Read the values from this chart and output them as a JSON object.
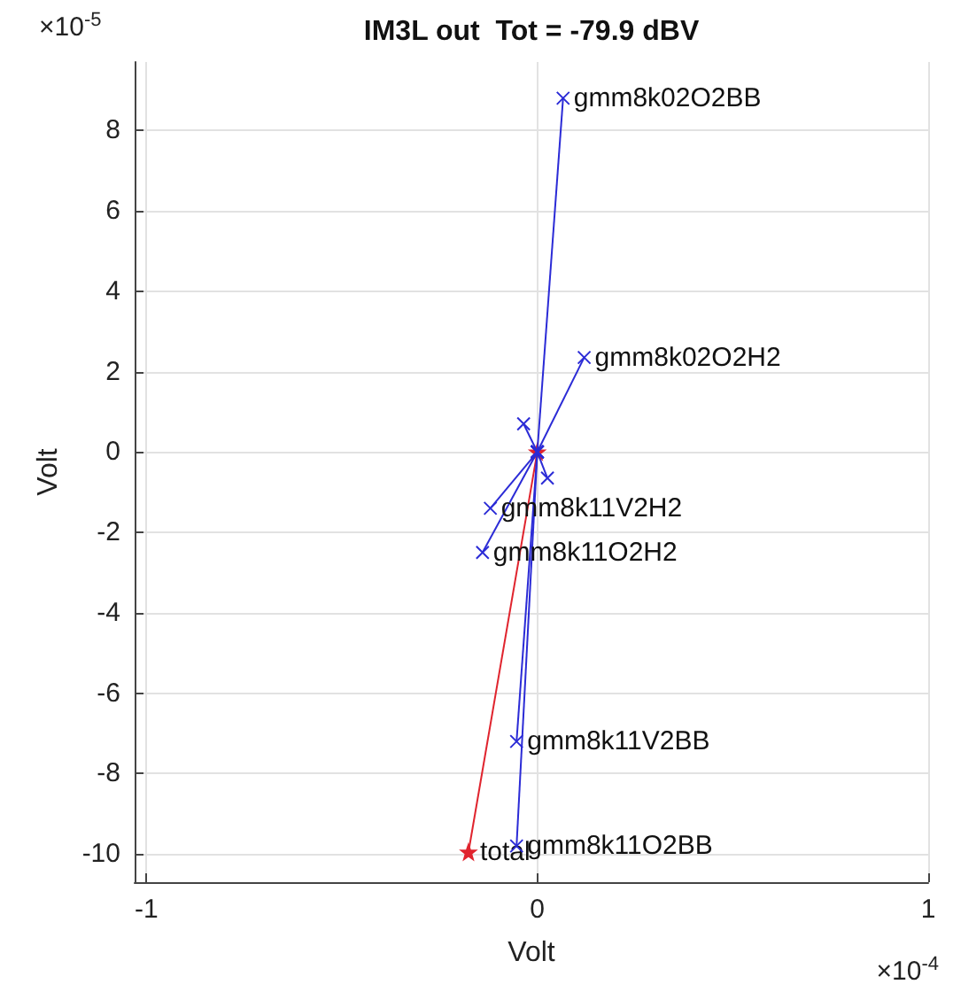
{
  "chart_data": {
    "type": "line",
    "title": "IM3L out  Tot = -79.9 dBV",
    "xlabel": "Volt",
    "ylabel": "Volt",
    "annotations": [
      "×10$^{-4}$",
      "×10$^{-5}$"
    ],
    "xlim": [
      -1.03,
      1.0
    ],
    "xticks": [
      -1,
      0,
      1
    ],
    "ylim": [
      -10.7,
      9.7
    ],
    "yticks": [
      -10,
      -8,
      -6,
      -4,
      -2,
      0,
      2,
      4,
      6,
      8
    ],
    "grid": true,
    "legend": false,
    "marker": "cross",
    "line_style": "solid",
    "series": [
      {
        "name": "gmm8k02O2BB",
        "color": "#2b2bd6",
        "x": [
          0,
          0.066
        ],
        "values": [
          0,
          8.8
        ]
      },
      {
        "name": "gmm8k02O2H2",
        "color": "#2b2bd6",
        "x": [
          0,
          0.12
        ],
        "values": [
          0,
          2.35
        ]
      },
      {
        "color": "#2b2bd6",
        "x": [
          0,
          -0.035
        ],
        "values": [
          0,
          0.7
        ]
      },
      {
        "color": "#2b2bd6",
        "x": [
          0,
          0.026
        ],
        "values": [
          0,
          -0.65
        ]
      },
      {
        "name": "gmm8k11V2H2",
        "color": "#2b2bd6",
        "x": [
          0,
          -0.12
        ],
        "values": [
          0,
          -1.4
        ]
      },
      {
        "name": "gmm8k11O2H2",
        "color": "#2b2bd6",
        "x": [
          0,
          -0.14
        ],
        "values": [
          0,
          -2.5
        ]
      },
      {
        "name": "gmm8k11V2BB",
        "color": "#2b2bd6",
        "x": [
          0,
          -0.053
        ],
        "values": [
          0,
          -7.2
        ]
      },
      {
        "name": "gmm8k11O2BB",
        "color": "#2b2bd6",
        "x": [
          0,
          -0.053
        ],
        "values": [
          0,
          -9.8
        ]
      },
      {
        "name": "total",
        "color": "#e0242e",
        "marker": "star",
        "x": [
          0,
          -0.176
        ],
        "values": [
          0,
          -9.95
        ]
      }
    ]
  }
}
